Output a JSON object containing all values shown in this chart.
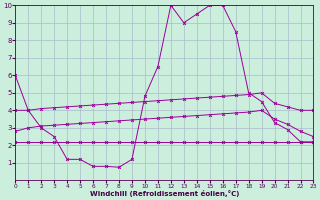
{
  "x": [
    0,
    1,
    2,
    3,
    4,
    5,
    6,
    7,
    8,
    9,
    10,
    11,
    12,
    13,
    14,
    15,
    16,
    17,
    18,
    19,
    20,
    21,
    22,
    23
  ],
  "line_main": [
    6,
    4,
    3,
    2.5,
    1.2,
    1.2,
    0.8,
    0.8,
    0.75,
    1.2,
    4.8,
    6.5,
    10,
    9,
    9.5,
    10,
    10,
    8.5,
    5,
    4.5,
    3.3,
    2.9,
    2.2,
    2.2
  ],
  "line_upper": [
    4.0,
    4.0,
    4.1,
    4.15,
    4.2,
    4.25,
    4.3,
    4.35,
    4.4,
    4.45,
    4.5,
    4.55,
    4.6,
    4.65,
    4.7,
    4.75,
    4.8,
    4.85,
    4.9,
    5.0,
    4.4,
    4.2,
    4.0,
    4.0
  ],
  "line_mid": [
    2.8,
    3.0,
    3.1,
    3.15,
    3.2,
    3.25,
    3.3,
    3.35,
    3.4,
    3.45,
    3.5,
    3.55,
    3.6,
    3.65,
    3.7,
    3.75,
    3.8,
    3.85,
    3.9,
    4.0,
    3.5,
    3.2,
    2.8,
    2.5
  ],
  "line_lower": [
    2.2,
    2.2,
    2.2,
    2.2,
    2.2,
    2.2,
    2.2,
    2.2,
    2.2,
    2.2,
    2.2,
    2.2,
    2.2,
    2.2,
    2.2,
    2.2,
    2.2,
    2.2,
    2.2,
    2.2,
    2.2,
    2.2,
    2.2,
    2.2
  ],
  "color": "#990099",
  "bg_color": "#cceedd",
  "grid_color": "#aabbcc",
  "xlabel": "Windchill (Refroidissement éolien,°C)",
  "ylim": [
    0,
    10
  ],
  "xlim": [
    0,
    23
  ],
  "yticks": [
    1,
    2,
    3,
    4,
    5,
    6,
    7,
    8,
    9,
    10
  ],
  "xticks": [
    0,
    1,
    2,
    3,
    4,
    5,
    6,
    7,
    8,
    9,
    10,
    11,
    12,
    13,
    14,
    15,
    16,
    17,
    18,
    19,
    20,
    21,
    22,
    23
  ]
}
